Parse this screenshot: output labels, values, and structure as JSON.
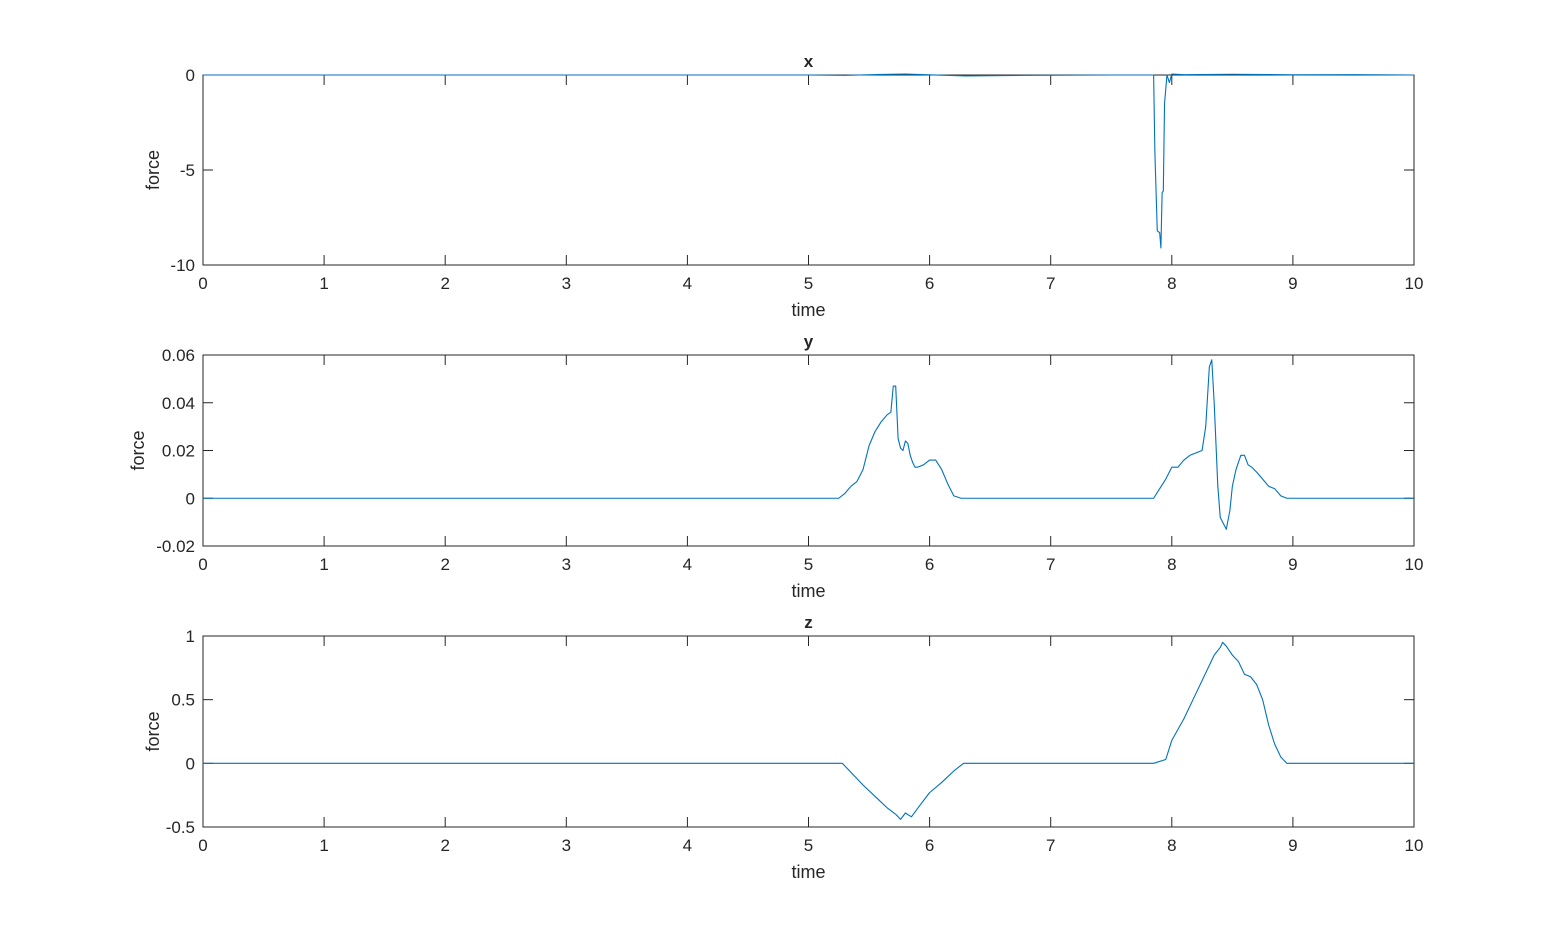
{
  "figure": {
    "background": "#ffffff",
    "line_color": "#0072BD",
    "axis_color": "#262626"
  },
  "chart_data": [
    {
      "type": "line",
      "title": "x",
      "xlabel": "time",
      "ylabel": "force",
      "xlim": [
        0,
        10
      ],
      "ylim": [
        -10,
        0
      ],
      "xticks": [
        0,
        1,
        2,
        3,
        4,
        5,
        6,
        7,
        8,
        9,
        10
      ],
      "yticks": [
        0,
        -5,
        -10
      ],
      "grid": false,
      "series": [
        {
          "x": [
            0,
            1,
            2,
            3,
            4,
            5,
            5.3,
            5.6,
            5.8,
            6.0,
            6.3,
            6.8,
            7.5,
            7.85,
            7.86,
            7.88,
            7.9,
            7.91,
            7.92,
            7.93,
            7.94,
            7.96,
            7.98,
            8.0,
            8.1,
            8.5,
            9,
            9.5,
            10
          ],
          "y": [
            0,
            0,
            0,
            0,
            0,
            0,
            -0.02,
            0.03,
            0.05,
            0.01,
            -0.05,
            -0.02,
            0,
            0,
            -4.0,
            -8.2,
            -8.3,
            -9.1,
            -6.2,
            -6.1,
            -1.5,
            0,
            -0.4,
            0.05,
            0.02,
            0.04,
            0.01,
            0.02,
            0
          ]
        }
      ]
    },
    {
      "type": "line",
      "title": "y",
      "xlabel": "time",
      "ylabel": "force",
      "xlim": [
        0,
        10
      ],
      "ylim": [
        -0.02,
        0.06
      ],
      "xticks": [
        0,
        1,
        2,
        3,
        4,
        5,
        6,
        7,
        8,
        9,
        10
      ],
      "yticks": [
        0.06,
        0.04,
        0.02,
        0,
        -0.02
      ],
      "grid": false,
      "series": [
        {
          "x": [
            0,
            5.25,
            5.3,
            5.35,
            5.4,
            5.45,
            5.5,
            5.55,
            5.6,
            5.65,
            5.68,
            5.7,
            5.72,
            5.74,
            5.76,
            5.78,
            5.8,
            5.82,
            5.84,
            5.86,
            5.88,
            5.9,
            5.95,
            6.0,
            6.05,
            6.1,
            6.15,
            6.2,
            6.26,
            7.85,
            7.9,
            7.95,
            8.0,
            8.05,
            8.1,
            8.15,
            8.2,
            8.25,
            8.28,
            8.31,
            8.33,
            8.35,
            8.38,
            8.4,
            8.42,
            8.45,
            8.48,
            8.5,
            8.53,
            8.57,
            8.6,
            8.63,
            8.66,
            8.7,
            8.75,
            8.8,
            8.85,
            8.9,
            8.95,
            10
          ],
          "y": [
            0,
            0,
            0.002,
            0.005,
            0.007,
            0.012,
            0.022,
            0.028,
            0.032,
            0.035,
            0.036,
            0.047,
            0.047,
            0.025,
            0.021,
            0.02,
            0.024,
            0.023,
            0.018,
            0.015,
            0.013,
            0.013,
            0.014,
            0.016,
            0.016,
            0.012,
            0.006,
            0.001,
            0,
            0,
            0.004,
            0.008,
            0.013,
            0.013,
            0.016,
            0.018,
            0.019,
            0.02,
            0.03,
            0.055,
            0.058,
            0.04,
            0.005,
            -0.008,
            -0.01,
            -0.013,
            -0.005,
            0.005,
            0.012,
            0.018,
            0.018,
            0.014,
            0.013,
            0.011,
            0.008,
            0.005,
            0.004,
            0.001,
            0,
            0
          ]
        }
      ]
    },
    {
      "type": "line",
      "title": "z",
      "xlabel": "time",
      "ylabel": "force",
      "xlim": [
        0,
        10
      ],
      "ylim": [
        -0.5,
        1
      ],
      "xticks": [
        0,
        1,
        2,
        3,
        4,
        5,
        6,
        7,
        8,
        9,
        10
      ],
      "yticks": [
        1,
        0.5,
        0,
        -0.5
      ],
      "grid": false,
      "series": [
        {
          "x": [
            0,
            5.28,
            5.35,
            5.45,
            5.55,
            5.65,
            5.72,
            5.76,
            5.8,
            5.85,
            5.92,
            6.0,
            6.1,
            6.2,
            6.28,
            7.85,
            7.95,
            8.0,
            8.1,
            8.2,
            8.3,
            8.35,
            8.4,
            8.42,
            8.45,
            8.5,
            8.55,
            8.6,
            8.65,
            8.7,
            8.75,
            8.8,
            8.85,
            8.9,
            8.95,
            10
          ],
          "y": [
            0,
            0,
            -0.07,
            -0.17,
            -0.26,
            -0.35,
            -0.4,
            -0.44,
            -0.39,
            -0.42,
            -0.33,
            -0.23,
            -0.15,
            -0.06,
            0,
            0,
            0.03,
            0.18,
            0.35,
            0.55,
            0.75,
            0.85,
            0.91,
            0.95,
            0.92,
            0.85,
            0.8,
            0.7,
            0.68,
            0.62,
            0.5,
            0.3,
            0.15,
            0.05,
            0,
            0
          ]
        }
      ]
    }
  ]
}
